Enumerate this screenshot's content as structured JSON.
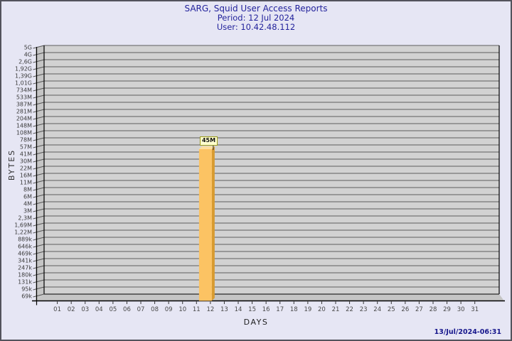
{
  "window": {
    "background": "#e6e6f4",
    "border_color": "#53535c"
  },
  "header": {
    "title": "SARG, Squid User Access Reports",
    "period": "Period: 12 Jul 2024",
    "user": "User: 10.42.48.112",
    "text_color": "#23239c"
  },
  "footer": {
    "timestamp": "13/Jul/2024-06:31",
    "text_color": "#16168c"
  },
  "chart_data": {
    "type": "bar",
    "title": "SARG, Squid User Access Reports",
    "subtitle": [
      "Period: 12 Jul 2024",
      "User: 10.42.48.112"
    ],
    "xlabel": "DAYS",
    "ylabel": "BYTES",
    "y_scale": "log",
    "grid": true,
    "legend": false,
    "categories": [
      "01",
      "02",
      "03",
      "04",
      "05",
      "06",
      "07",
      "08",
      "09",
      "10",
      "11",
      "12",
      "13",
      "14",
      "15",
      "16",
      "17",
      "18",
      "19",
      "20",
      "21",
      "22",
      "23",
      "24",
      "25",
      "26",
      "27",
      "28",
      "29",
      "30",
      "31"
    ],
    "values": [
      0,
      0,
      0,
      0,
      0,
      0,
      0,
      0,
      0,
      0,
      0,
      45000000,
      0,
      0,
      0,
      0,
      0,
      0,
      0,
      0,
      0,
      0,
      0,
      0,
      0,
      0,
      0,
      0,
      0,
      0,
      0
    ],
    "bar": {
      "category": "12",
      "label": "45M",
      "value": 45000000
    },
    "y_tick_labels": [
      "5G",
      "4G",
      "2,6G",
      "1,92G",
      "1,39G",
      "1,01G",
      "734M",
      "533M",
      "387M",
      "281M",
      "204M",
      "148M",
      "108M",
      "78M",
      "57M",
      "41M",
      "30M",
      "22M",
      "16M",
      "11M",
      "8M",
      "6M",
      "4M",
      "3M",
      "2,3M",
      "1,69M",
      "1,22M",
      "889k",
      "646k",
      "469k",
      "341k",
      "247k",
      "180k",
      "131k",
      "95k",
      "69k"
    ],
    "colors": {
      "bar_front": "#fcc363",
      "bar_side": "#d89b30",
      "bar_top": "#fedf9e",
      "plot_background": "#d2d2d2",
      "wall": "#c5c5c5",
      "gridline": "#5e5e5e",
      "axis": "#000000",
      "y_tick_text": "#3a3a3a",
      "x_tick_text": "#4a4a4a",
      "badge_background": "#ffffce",
      "badge_border": "#9c9c1e"
    }
  }
}
